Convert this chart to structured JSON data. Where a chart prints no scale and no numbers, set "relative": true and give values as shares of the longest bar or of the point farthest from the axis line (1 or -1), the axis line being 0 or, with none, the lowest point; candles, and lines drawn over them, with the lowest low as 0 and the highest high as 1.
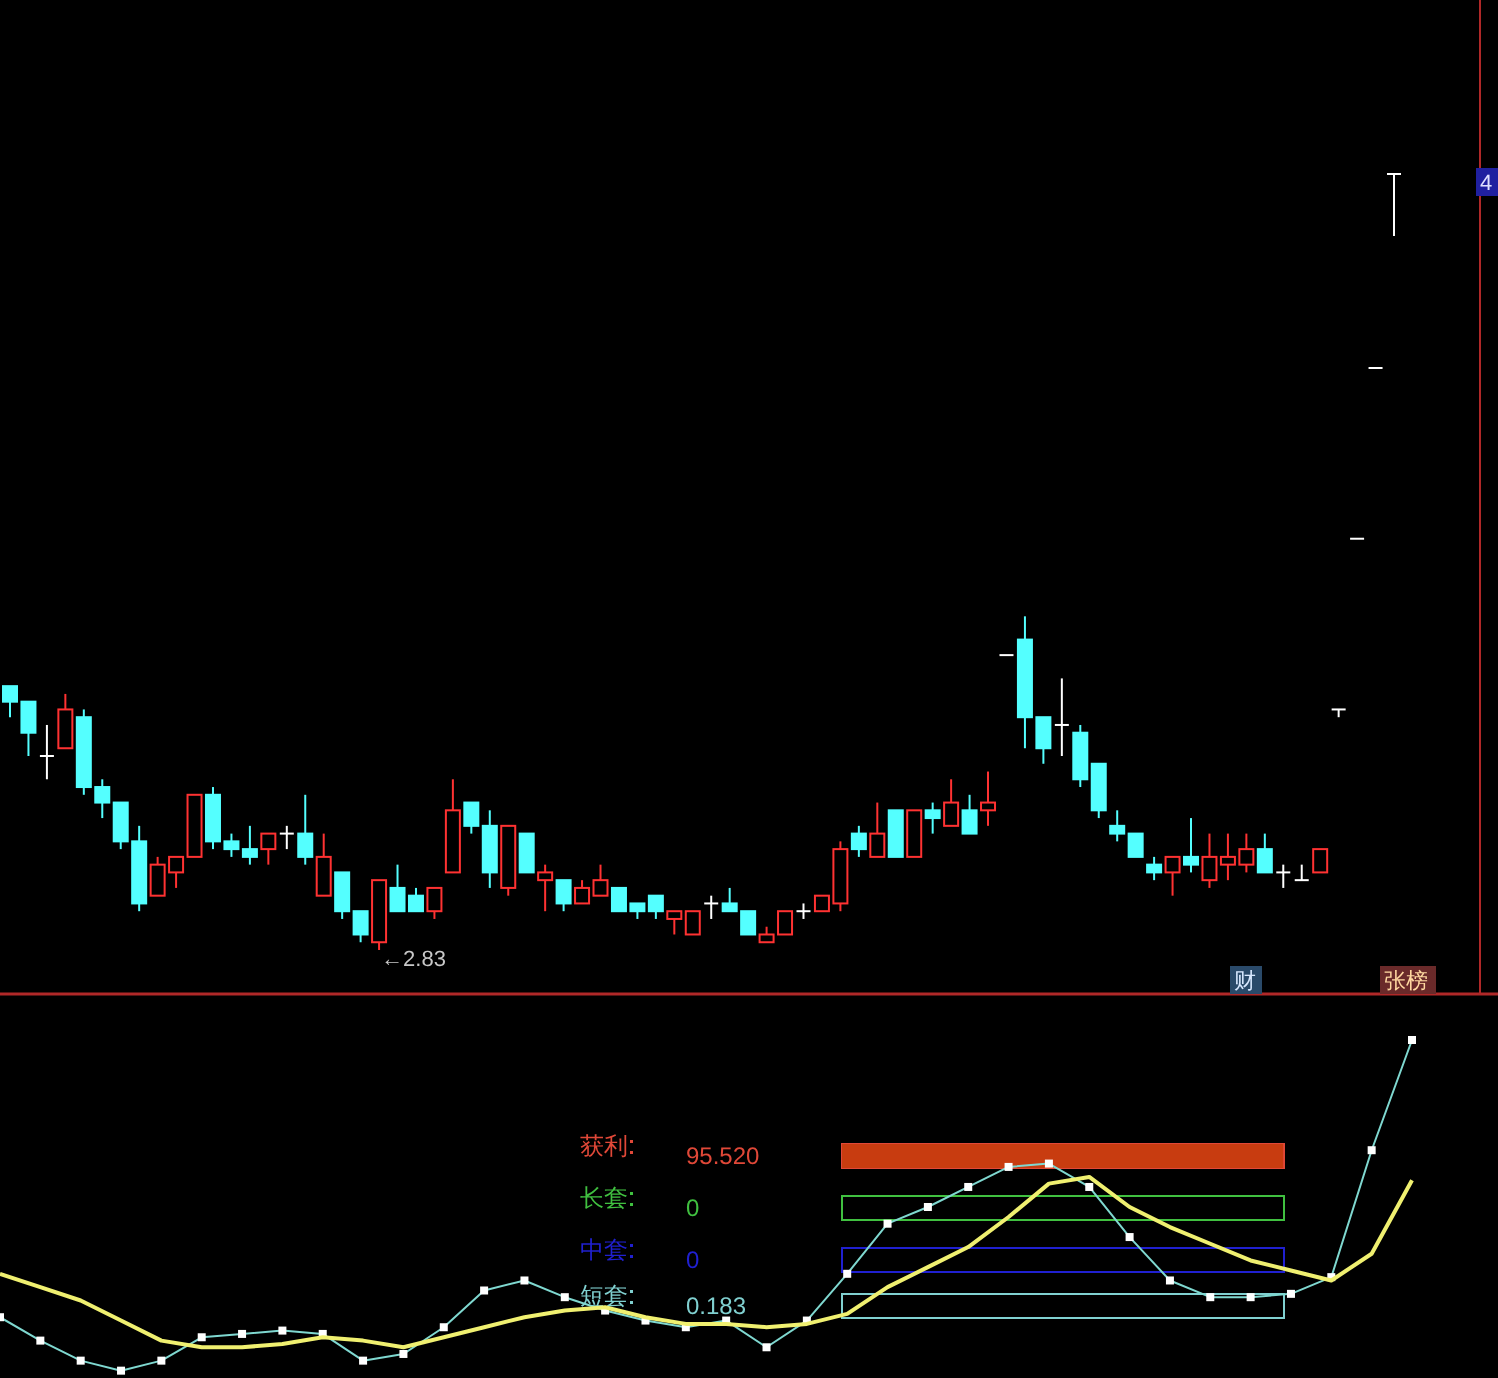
{
  "chart_data": [
    {
      "type": "candlestick",
      "relative": true,
      "categories": [
        null,
        null,
        null,
        null,
        null,
        null,
        null,
        null,
        null,
        null,
        null,
        null,
        null,
        null,
        null,
        null,
        null,
        null,
        null,
        null,
        null,
        null,
        null,
        null,
        null,
        null,
        null,
        null,
        null,
        null,
        null,
        null,
        null,
        null,
        null,
        null,
        null,
        null,
        null,
        null,
        null,
        null,
        null,
        null,
        null,
        null,
        null,
        null,
        null,
        null,
        null,
        null,
        null,
        null,
        null,
        null,
        null,
        null,
        null,
        null,
        null,
        null,
        null,
        null,
        null,
        null,
        null,
        null,
        null,
        null,
        null,
        null,
        null,
        null,
        null,
        null
      ],
      "ohlc": [
        [
          0.34,
          0.34,
          0.3,
          0.32
        ],
        [
          0.32,
          0.32,
          0.25,
          0.28
        ],
        [
          0.25,
          0.29,
          0.22,
          0.25
        ],
        [
          0.26,
          0.33,
          0.26,
          0.31
        ],
        [
          0.3,
          0.31,
          0.2,
          0.21
        ],
        [
          0.21,
          0.22,
          0.17,
          0.19
        ],
        [
          0.19,
          0.19,
          0.13,
          0.14
        ],
        [
          0.14,
          0.16,
          0.05,
          0.06
        ],
        [
          0.07,
          0.12,
          0.07,
          0.11
        ],
        [
          0.1,
          0.12,
          0.08,
          0.12
        ],
        [
          0.12,
          0.2,
          0.12,
          0.2
        ],
        [
          0.2,
          0.21,
          0.13,
          0.14
        ],
        [
          0.14,
          0.15,
          0.12,
          0.13
        ],
        [
          0.13,
          0.16,
          0.11,
          0.12
        ],
        [
          0.13,
          0.15,
          0.11,
          0.15
        ],
        [
          0.15,
          0.16,
          0.13,
          0.15
        ],
        [
          0.15,
          0.2,
          0.11,
          0.12
        ],
        [
          0.07,
          0.15,
          0.07,
          0.12
        ],
        [
          0.1,
          0.1,
          0.04,
          0.05
        ],
        [
          0.05,
          0.05,
          0.01,
          0.02
        ],
        [
          0.01,
          0.09,
          0,
          0.09
        ],
        [
          0.08,
          0.11,
          0.05,
          0.05
        ],
        [
          0.07,
          0.08,
          0.05,
          0.05
        ],
        [
          0.05,
          0.08,
          0.04,
          0.08
        ],
        [
          0.1,
          0.22,
          0.1,
          0.18
        ],
        [
          0.19,
          0.19,
          0.15,
          0.16
        ],
        [
          0.16,
          0.18,
          0.08,
          0.1
        ],
        [
          0.08,
          0.16,
          0.07,
          0.16
        ],
        [
          0.15,
          0.15,
          0.1,
          0.1
        ],
        [
          0.09,
          0.11,
          0.05,
          0.1
        ],
        [
          0.09,
          0.09,
          0.05,
          0.06
        ],
        [
          0.06,
          0.09,
          0.06,
          0.08
        ],
        [
          0.07,
          0.11,
          0.07,
          0.09
        ],
        [
          0.08,
          0.08,
          0.05,
          0.05
        ],
        [
          0.06,
          0.06,
          0.04,
          0.05
        ],
        [
          0.07,
          0.07,
          0.04,
          0.05
        ],
        [
          0.04,
          0.05,
          0.02,
          0.05
        ],
        [
          0.02,
          0.05,
          0.02,
          0.05
        ],
        [
          0.06,
          0.07,
          0.04,
          0.06
        ],
        [
          0.06,
          0.08,
          0.05,
          0.05
        ],
        [
          0.05,
          0.05,
          0.02,
          0.02
        ],
        [
          0.01,
          0.03,
          0.01,
          0.02
        ],
        [
          0.02,
          0.05,
          0.02,
          0.05
        ],
        [
          0.05,
          0.06,
          0.04,
          0.05
        ],
        [
          0.05,
          0.07,
          0.05,
          0.07
        ],
        [
          0.06,
          0.14,
          0.05,
          0.13
        ],
        [
          0.15,
          0.16,
          0.12,
          0.13
        ],
        [
          0.12,
          0.19,
          0.12,
          0.15
        ],
        [
          0.18,
          0.18,
          0.12,
          0.12
        ],
        [
          0.12,
          0.18,
          0.12,
          0.18
        ],
        [
          0.18,
          0.19,
          0.15,
          0.17
        ],
        [
          0.16,
          0.22,
          0.16,
          0.19
        ],
        [
          0.18,
          0.2,
          0.15,
          0.15
        ],
        [
          0.18,
          0.23,
          0.16,
          0.19
        ],
        [
          0.38,
          0.38,
          0.38,
          0.38
        ],
        [
          0.4,
          0.43,
          0.26,
          0.3
        ],
        [
          0.3,
          0.3,
          0.24,
          0.26
        ],
        [
          0.29,
          0.35,
          0.25,
          0.29
        ],
        [
          0.28,
          0.29,
          0.21,
          0.22
        ],
        [
          0.24,
          0.24,
          0.17,
          0.18
        ],
        [
          0.16,
          0.18,
          0.14,
          0.15
        ],
        [
          0.15,
          0.15,
          0.12,
          0.12
        ],
        [
          0.11,
          0.12,
          0.09,
          0.1
        ],
        [
          0.1,
          0.12,
          0.07,
          0.12
        ],
        [
          0.12,
          0.17,
          0.1,
          0.11
        ],
        [
          0.09,
          0.15,
          0.08,
          0.12
        ],
        [
          0.11,
          0.15,
          0.09,
          0.12
        ],
        [
          0.11,
          0.15,
          0.1,
          0.13
        ],
        [
          0.13,
          0.15,
          0.1,
          0.1
        ],
        [
          0.1,
          0.11,
          0.08,
          0.1
        ],
        [
          0.09,
          0.11,
          0.09,
          0.09
        ],
        [
          0.1,
          0.13,
          0.1,
          0.13
        ],
        [
          0.31,
          0.31,
          0.3,
          0.31
        ],
        [
          0.53,
          0.53,
          0.53,
          0.53
        ],
        [
          0.75,
          0.75,
          0.75,
          0.75
        ],
        [
          1,
          1,
          0.92,
          1
        ]
      ],
      "annotations": [
        "←2.83",
        "财",
        "张榜",
        "4"
      ]
    },
    {
      "type": "line",
      "relative": true,
      "categories": [
        null,
        null,
        null,
        null,
        null,
        null,
        null,
        null,
        null,
        null,
        null,
        null,
        null,
        null,
        null,
        null,
        null,
        null,
        null,
        null,
        null,
        null,
        null,
        null,
        null,
        null,
        null,
        null,
        null,
        null,
        null,
        null,
        null,
        null,
        null,
        null
      ],
      "series": [
        {
          "color": "#7fd8d0",
          "marker": "square",
          "values": [
            0.17,
            0.1,
            0.04,
            0.01,
            0.04,
            0.11,
            0.12,
            0.13,
            0.12,
            0.04,
            0.06,
            0.14,
            0.25,
            0.28,
            0.23,
            0.19,
            0.16,
            0.14,
            0.16,
            0.08,
            0.16,
            0.3,
            0.45,
            0.5,
            0.56,
            0.62,
            0.63,
            0.56,
            0.41,
            0.28,
            0.23,
            0.23,
            0.24,
            0.29,
            0.67,
            1
          ]
        },
        {
          "color": "#f0f070",
          "values": [
            0.3,
            0.26,
            0.22,
            0.16,
            0.1,
            0.08,
            0.08,
            0.09,
            0.11,
            0.1,
            0.08,
            0.11,
            0.14,
            0.17,
            0.19,
            0.2,
            0.17,
            0.15,
            0.15,
            0.14,
            0.15,
            0.18,
            0.26,
            0.32,
            0.38,
            0.47,
            0.57,
            0.59,
            0.5,
            0.44,
            0.39,
            0.34,
            0.31,
            0.28,
            0.36,
            0.58
          ]
        }
      ]
    },
    {
      "type": "other",
      "categories": [
        "获利",
        "长套",
        "中套",
        "短套"
      ],
      "values": [
        95.52,
        0,
        0,
        0.183
      ],
      "value_labels": [
        "95.520",
        "0",
        "0",
        "0.183"
      ],
      "colors": [
        "#e04838",
        "#40c040",
        "#2020d0",
        "#80d0d0"
      ]
    }
  ]
}
